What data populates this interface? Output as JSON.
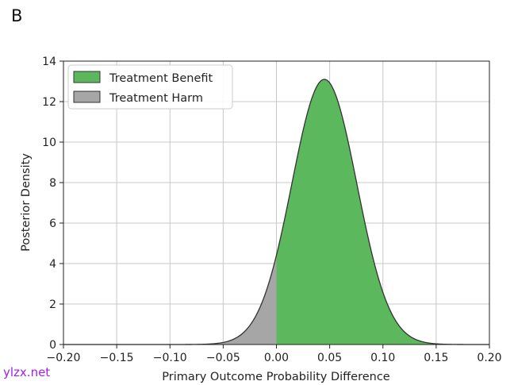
{
  "panel_label": "B",
  "watermark": "ylzx.net",
  "chart_data": {
    "type": "area",
    "title": "",
    "xlabel": "Primary Outcome Probability Difference",
    "ylabel": "Posterior Density",
    "xlim": [
      -0.2,
      0.2
    ],
    "ylim": [
      0,
      14
    ],
    "xticks": [
      -0.2,
      -0.15,
      -0.1,
      -0.05,
      0.0,
      0.05,
      0.1,
      0.15,
      0.2
    ],
    "xtick_labels": [
      "−0.20",
      "−0.15",
      "−0.10",
      "−0.05",
      "0.00",
      "0.05",
      "0.10",
      "0.15",
      "0.20"
    ],
    "yticks": [
      0,
      2,
      4,
      6,
      8,
      10,
      12,
      14
    ],
    "ytick_labels": [
      "0",
      "2",
      "4",
      "6",
      "8",
      "10",
      "12",
      "14"
    ],
    "grid": true,
    "legend_position": "top-left",
    "distribution": {
      "shape": "normal",
      "mean": 0.045,
      "sd": 0.0305,
      "peak_density": 13.1
    },
    "series": [
      {
        "name": "Treatment Benefit",
        "color": "#5cb85c",
        "region": "x > 0",
        "x": [
          0.0,
          0.02,
          0.045,
          0.07,
          0.1,
          0.13,
          0.15
        ],
        "y": [
          4.2,
          9.2,
          13.1,
          9.2,
          2.6,
          0.27,
          0.04
        ]
      },
      {
        "name": "Treatment Harm",
        "color": "#a6a6a6",
        "region": "x < 0",
        "x": [
          -0.1,
          -0.05,
          -0.03,
          -0.01,
          0.0
        ],
        "y": [
          0.0,
          0.3,
          1.0,
          2.5,
          4.2
        ]
      }
    ]
  }
}
